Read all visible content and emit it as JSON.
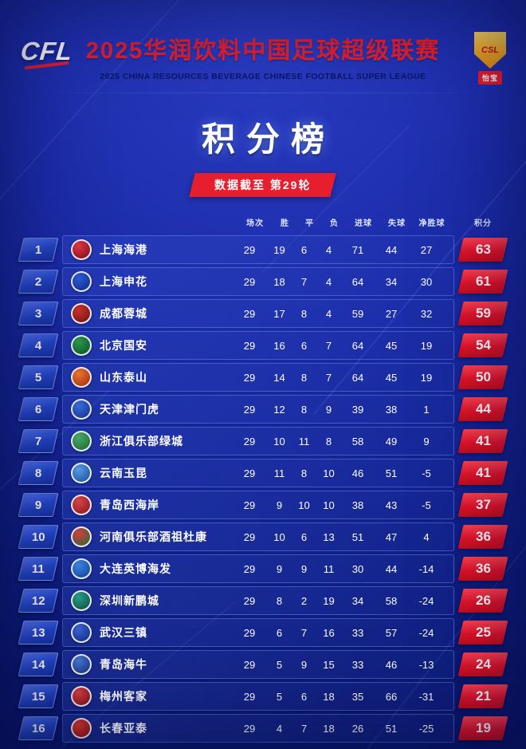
{
  "header": {
    "logo_text": "CFL",
    "title_cn": "2025华润饮料中国足球超级联赛",
    "title_en": "2025 CHINA RESOURCES BEVERAGE CHINESE FOOTBALL SUPER LEAGUE",
    "badge_shield_text": "CSL",
    "badge_sponsor": "怡宝"
  },
  "section": {
    "title": "积分榜",
    "subtitle": "数据截至 第29轮"
  },
  "colors": {
    "accent_red": "#e71e2e",
    "background_blue": "#1b2ba8",
    "rank_badge_blue": "#2344c4",
    "badge_gold": "#f5ac1e"
  },
  "chart_data": {
    "type": "table",
    "title": "积分榜",
    "subtitle": "数据截至 第29轮",
    "columns": [
      "场次",
      "胜",
      "平",
      "负",
      "进球",
      "失球",
      "净胜球",
      "积分"
    ],
    "rows": [
      {
        "rank": 1,
        "team": "上海海港",
        "stats": [
          29,
          19,
          6,
          4,
          71,
          44,
          27
        ],
        "points": 63,
        "logo": [
          "#e63946",
          "#7a0c18"
        ]
      },
      {
        "rank": 2,
        "team": "上海申花",
        "stats": [
          29,
          18,
          7,
          4,
          64,
          34,
          30
        ],
        "points": 61,
        "logo": [
          "#2b5fd9",
          "#0e2a8a"
        ]
      },
      {
        "rank": 3,
        "team": "成都蓉城",
        "stats": [
          29,
          17,
          8,
          4,
          59,
          27,
          32
        ],
        "points": 59,
        "logo": [
          "#d0342c",
          "#701015"
        ]
      },
      {
        "rank": 4,
        "team": "北京国安",
        "stats": [
          29,
          16,
          6,
          7,
          64,
          45,
          19
        ],
        "points": 54,
        "logo": [
          "#2a9d4e",
          "#0c5226"
        ]
      },
      {
        "rank": 5,
        "team": "山东泰山",
        "stats": [
          29,
          14,
          8,
          7,
          64,
          45,
          19
        ],
        "points": 50,
        "logo": [
          "#f07830",
          "#a32b0c"
        ]
      },
      {
        "rank": 6,
        "team": "天津津门虎",
        "stats": [
          29,
          12,
          8,
          9,
          39,
          38,
          1
        ],
        "points": 44,
        "logo": [
          "#3b6fe0",
          "#13308f"
        ]
      },
      {
        "rank": 7,
        "team": "浙江俱乐部绿城",
        "stats": [
          29,
          10,
          11,
          8,
          58,
          49,
          9
        ],
        "points": 41,
        "logo": [
          "#4cae6a",
          "#1a6a34"
        ]
      },
      {
        "rank": 8,
        "team": "云南玉昆",
        "stats": [
          29,
          11,
          8,
          10,
          46,
          51,
          -5
        ],
        "points": 41,
        "logo": [
          "#5aa0e8",
          "#1a4fa0"
        ]
      },
      {
        "rank": 9,
        "team": "青岛西海岸",
        "stats": [
          29,
          9,
          10,
          10,
          38,
          43,
          -5
        ],
        "points": 37,
        "logo": [
          "#e04848",
          "#8a1220"
        ]
      },
      {
        "rank": 10,
        "team": "河南俱乐部酒祖杜康",
        "stats": [
          29,
          10,
          6,
          13,
          51,
          47,
          4
        ],
        "points": 36,
        "logo": [
          "#d94040",
          "#1f6e38"
        ]
      },
      {
        "rank": 11,
        "team": "大连英博海发",
        "stats": [
          29,
          9,
          9,
          11,
          30,
          44,
          -14
        ],
        "points": 36,
        "logo": [
          "#3a8ae8",
          "#123f96"
        ]
      },
      {
        "rank": 12,
        "team": "深圳新鹏城",
        "stats": [
          29,
          8,
          2,
          19,
          34,
          58,
          -24
        ],
        "points": 26,
        "logo": [
          "#2aa08a",
          "#0c4f42"
        ]
      },
      {
        "rank": 13,
        "team": "武汉三镇",
        "stats": [
          29,
          6,
          7,
          16,
          33,
          57,
          -24
        ],
        "points": 25,
        "logo": [
          "#3a66d8",
          "#122b80"
        ]
      },
      {
        "rank": 14,
        "team": "青岛海牛",
        "stats": [
          29,
          5,
          9,
          15,
          33,
          46,
          -13
        ],
        "points": 24,
        "logo": [
          "#4878d8",
          "#16307e"
        ]
      },
      {
        "rank": 15,
        "team": "梅州客家",
        "stats": [
          29,
          5,
          6,
          18,
          35,
          66,
          -31
        ],
        "points": 21,
        "logo": [
          "#e04040",
          "#801018"
        ]
      },
      {
        "rank": 16,
        "team": "长春亚泰",
        "stats": [
          29,
          4,
          7,
          18,
          26,
          51,
          -25
        ],
        "points": 19,
        "logo": [
          "#e0392e",
          "#8f0f10"
        ]
      }
    ]
  }
}
